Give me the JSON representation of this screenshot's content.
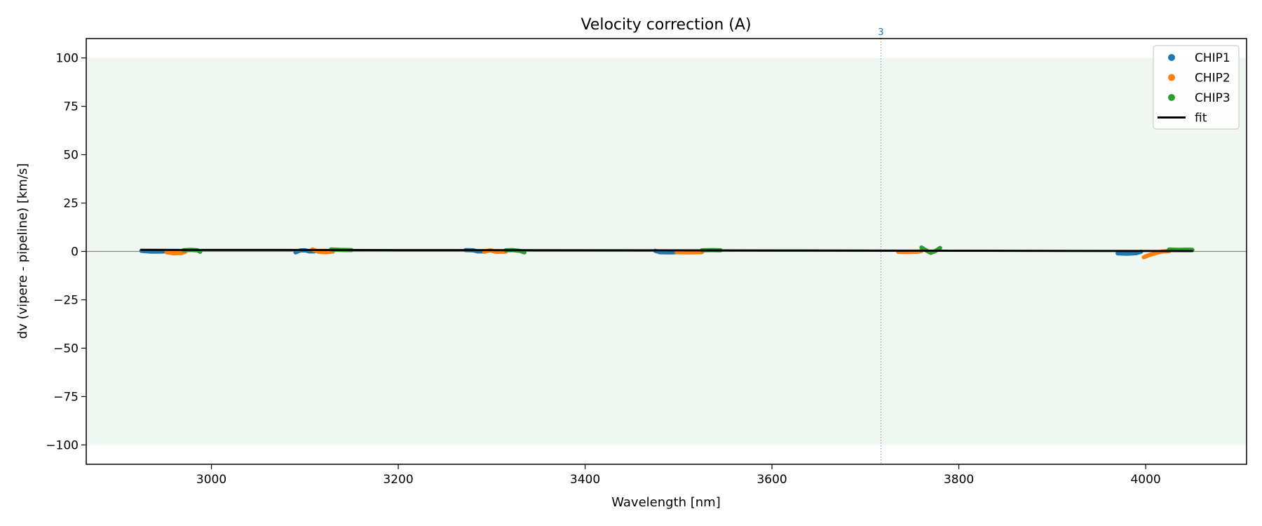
{
  "chart_data": {
    "type": "line",
    "title": "Velocity correction (A)",
    "xlabel": "Wavelength [nm]",
    "ylabel": "dv (vipere - pipeline) [km/s]",
    "xlim": [
      2866,
      4108
    ],
    "ylim": [
      -110,
      110
    ],
    "xticks": [
      3000,
      3200,
      3400,
      3600,
      3800,
      4000
    ],
    "yticks": [
      -100,
      -75,
      -50,
      -25,
      0,
      25,
      50,
      75,
      100
    ],
    "shaded_band": [
      -100,
      100
    ],
    "band_color": "#f0f7f0",
    "zero_line": 0,
    "vertical_marker": {
      "x": 3716.6,
      "label": "3",
      "color": "#1f77b4"
    },
    "legend_placement": "top-right",
    "series": [
      {
        "name": "CHIP1",
        "color": "#1f77b4",
        "marker": "dot",
        "segments": [
          [
            [
              2925,
              0.3
            ],
            [
              2935,
              -0.1
            ],
            [
              2945,
              -0.1
            ],
            [
              2952,
              0.1
            ]
          ],
          [
            [
              3090,
              -0.5
            ],
            [
              3095,
              0.5
            ],
            [
              3100,
              0.6
            ],
            [
              3105,
              0.0
            ],
            [
              3110,
              0.0
            ]
          ],
          [
            [
              3272,
              0.7
            ],
            [
              3280,
              0.6
            ],
            [
              3285,
              0.0
            ],
            [
              3292,
              0.0
            ]
          ],
          [
            [
              3475,
              0.3
            ],
            [
              3480,
              -0.4
            ],
            [
              3490,
              -0.5
            ],
            [
              3498,
              -0.4
            ]
          ],
          [
            [
              3970,
              -1.0
            ],
            [
              3980,
              -1.2
            ],
            [
              3990,
              -0.9
            ],
            [
              3995,
              -0.2
            ]
          ]
        ]
      },
      {
        "name": "CHIP2",
        "color": "#ff7f0e",
        "marker": "dot",
        "segments": [
          [
            [
              2952,
              -0.4
            ],
            [
              2960,
              -1.0
            ],
            [
              2968,
              -0.8
            ],
            [
              2972,
              -0.2
            ]
          ],
          [
            [
              3108,
              1.0
            ],
            [
              3115,
              -0.2
            ],
            [
              3122,
              -0.4
            ],
            [
              3130,
              -0.1
            ]
          ],
          [
            [
              3292,
              -0.2
            ],
            [
              3298,
              0.6
            ],
            [
              3305,
              -0.2
            ],
            [
              3315,
              -0.1
            ]
          ],
          [
            [
              3498,
              -0.4
            ],
            [
              3510,
              -0.5
            ],
            [
              3525,
              -0.4
            ]
          ],
          [
            [
              3735,
              -0.2
            ],
            [
              3745,
              -0.3
            ],
            [
              3755,
              -0.2
            ],
            [
              3760,
              0.2
            ]
          ],
          [
            [
              3998,
              -3.0
            ],
            [
              4003,
              -2.0
            ],
            [
              4010,
              -1.0
            ],
            [
              4018,
              0.0
            ],
            [
              4025,
              0.2
            ]
          ]
        ]
      },
      {
        "name": "CHIP3",
        "color": "#2ca02c",
        "marker": "dot",
        "segments": [
          [
            [
              2970,
              0.6
            ],
            [
              2978,
              0.8
            ],
            [
              2985,
              0.6
            ],
            [
              2988,
              -0.2
            ]
          ],
          [
            [
              3128,
              1.0
            ],
            [
              3138,
              0.8
            ],
            [
              3150,
              0.7
            ]
          ],
          [
            [
              3315,
              0.6
            ],
            [
              3322,
              0.7
            ],
            [
              3330,
              0.3
            ],
            [
              3335,
              -0.5
            ]
          ],
          [
            [
              3525,
              0.6
            ],
            [
              3535,
              0.7
            ],
            [
              3545,
              0.6
            ]
          ],
          [
            [
              3760,
              2.0
            ],
            [
              3765,
              0.5
            ],
            [
              3770,
              -0.7
            ],
            [
              3775,
              0.2
            ],
            [
              3780,
              1.8
            ]
          ],
          [
            [
              4025,
              1.0
            ],
            [
              4035,
              0.8
            ],
            [
              4045,
              0.9
            ],
            [
              4050,
              0.8
            ]
          ]
        ]
      },
      {
        "name": "fit",
        "color": "#000000",
        "marker": "line",
        "segments": [
          [
            [
              2925,
              0.8
            ],
            [
              3200,
              0.7
            ],
            [
              3600,
              0.5
            ],
            [
              4050,
              0.2
            ]
          ]
        ]
      }
    ]
  }
}
